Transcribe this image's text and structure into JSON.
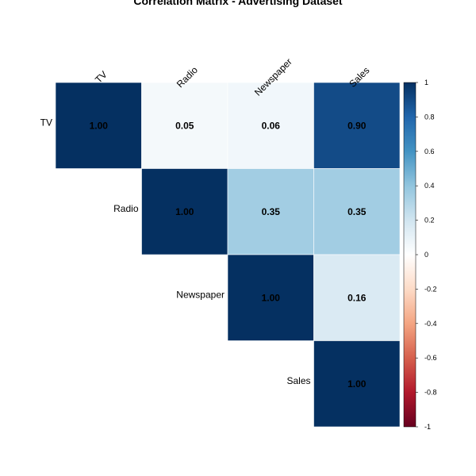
{
  "chart_data": {
    "type": "heatmap",
    "title": "Correlation Matrix - Advertising Dataset",
    "variables": [
      "TV",
      "Radio",
      "Newspaper",
      "Sales"
    ],
    "matrix": [
      [
        1.0,
        0.05,
        0.06,
        0.9
      ],
      [
        0.05,
        1.0,
        0.35,
        0.35
      ],
      [
        0.06,
        0.35,
        1.0,
        0.16
      ],
      [
        0.9,
        0.35,
        0.16,
        1.0
      ]
    ],
    "display": "upper-triangle",
    "value_labels": [
      [
        "1.00",
        "0.05",
        "0.06",
        "0.90"
      ],
      [
        "",
        "1.00",
        "0.35",
        "0.35"
      ],
      [
        "",
        "",
        "1.00",
        "0.16"
      ],
      [
        "",
        "",
        "",
        "1.00"
      ]
    ],
    "colorbar": {
      "range": [
        -1,
        1
      ],
      "ticks": [
        "1",
        "0.8",
        "0.6",
        "0.4",
        "0.2",
        "0",
        "-0.2",
        "-0.4",
        "-0.6",
        "-0.8",
        "-1"
      ],
      "colors": {
        "neg": "#67001F",
        "mid": "#FFFFFF",
        "pos": "#053061"
      }
    }
  }
}
